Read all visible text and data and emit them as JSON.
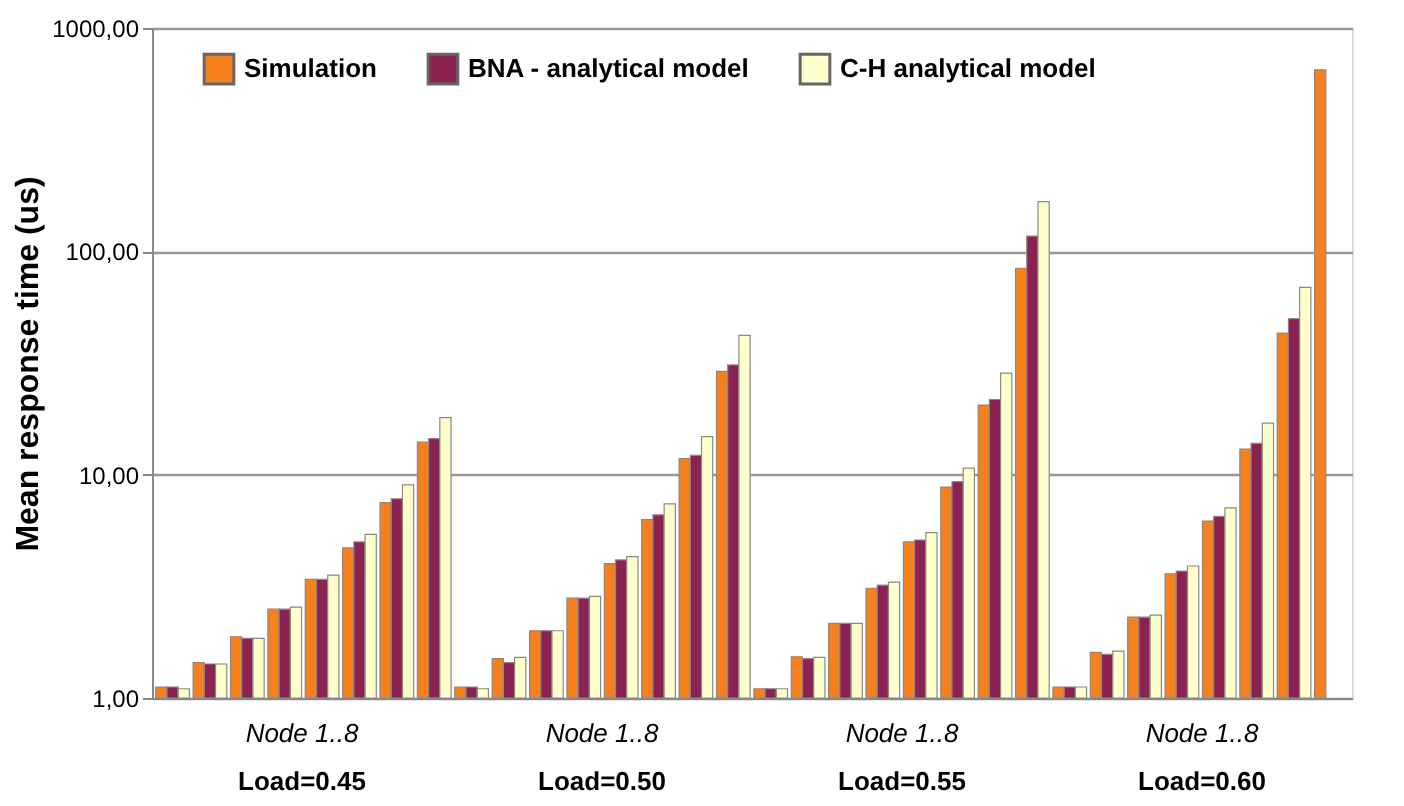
{
  "chart_data": {
    "type": "bar",
    "ylabel": "Mean response time (us)",
    "categories": [
      null,
      null,
      null,
      null,
      null,
      null,
      null,
      null,
      null,
      null,
      null,
      null,
      null,
      null,
      null,
      null,
      null,
      null,
      null,
      null,
      null,
      null,
      null,
      null,
      null,
      null,
      null,
      null,
      null,
      null,
      null,
      null
    ],
    "series": [
      {
        "name": "Simulation",
        "color": "#f7801e",
        "values": [
          1.12,
          1.44,
          1.88,
          2.5,
          3.4,
          4.7,
          7.5,
          14,
          1.12,
          1.5,
          2.0,
          2.8,
          4.0,
          6.3,
          11.8,
          29,
          1.1,
          1.53,
          2.16,
          3.1,
          5.0,
          8.8,
          20.5,
          84,
          1.12,
          1.6,
          2.3,
          3.6,
          6.2,
          13,
          43,
          650
        ]
      },
      {
        "name": "BNA - analytical model",
        "color": "#8b2252",
        "values": [
          1.12,
          1.42,
          1.85,
          2.5,
          3.4,
          5.0,
          7.8,
          14.5,
          1.12,
          1.44,
          2.0,
          2.8,
          4.15,
          6.6,
          12.2,
          31,
          1.1,
          1.5,
          2.16,
          3.2,
          5.1,
          9.3,
          21.7,
          117,
          1.12,
          1.57,
          2.3,
          3.7,
          6.5,
          13.8,
          50,
          null
        ]
      },
      {
        "name": "C-H analytical model",
        "color": "#ffffcc",
        "values": [
          1.1,
          1.42,
          1.85,
          2.55,
          3.55,
          5.4,
          9.0,
          18,
          1.1,
          1.52,
          2.0,
          2.85,
          4.3,
          7.4,
          14.8,
          42,
          1.1,
          1.52,
          2.16,
          3.3,
          5.5,
          10.7,
          28.5,
          167,
          1.12,
          1.62,
          2.35,
          3.9,
          7.1,
          17,
          69,
          null
        ]
      }
    ],
    "log": "y",
    "ylim": [
      1,
      1000
    ],
    "yticks": [
      {
        "value": 1,
        "label": "1,00"
      },
      {
        "value": 10,
        "label": "10,00"
      },
      {
        "value": 100,
        "label": "100,00"
      },
      {
        "value": 1000,
        "label": "1000,00"
      }
    ],
    "grid": "y",
    "legend": "top",
    "annotations": [
      "Node 1..8",
      "Load=0.45",
      "Node 1..8",
      "Load=0.50",
      "Node 1..8",
      "Load=0.55",
      "Node 1..8",
      "Load=0.60"
    ]
  }
}
